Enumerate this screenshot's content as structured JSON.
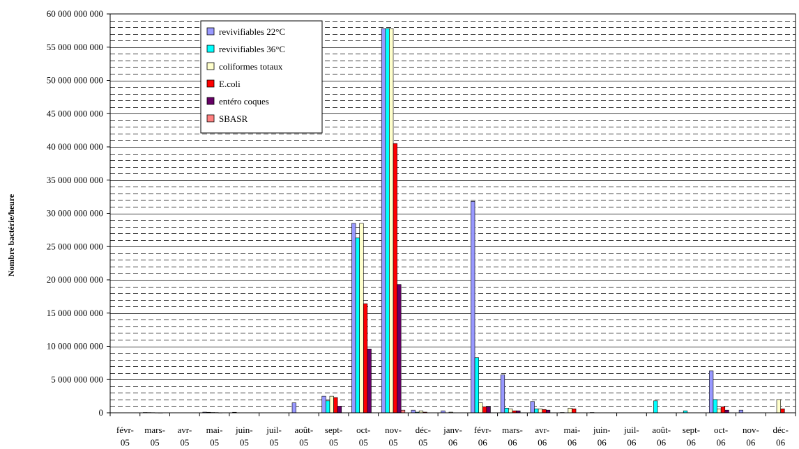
{
  "chart_data": {
    "type": "bar",
    "title": "",
    "xlabel": "",
    "ylabel": "Nombre bactérie/heure",
    "ylim": [
      0,
      60000000000
    ],
    "y_major_step": 5000000000,
    "y_minor_step": 1000000000,
    "y_tick_labels": [
      "0",
      "5 000 000 000",
      "10 000 000 000",
      "15 000 000 000",
      "20 000 000 000",
      "25 000 000 000",
      "30 000 000 000",
      "35 000 000 000",
      "40 000 000 000",
      "45 000 000 000",
      "50 000 000 000",
      "55 000 000 000",
      "60 000 000 000"
    ],
    "grid": true,
    "legend_position": "top-left",
    "categories": [
      [
        "févr-",
        "05"
      ],
      [
        "mars-",
        "05"
      ],
      [
        "avr-",
        "05"
      ],
      [
        "mai-",
        "05"
      ],
      [
        "juin-",
        "05"
      ],
      [
        "juil-",
        "05"
      ],
      [
        "août-",
        "05"
      ],
      [
        "sept-",
        "05"
      ],
      [
        "oct-",
        "05"
      ],
      [
        "nov-",
        "05"
      ],
      [
        "déc-",
        "05"
      ],
      [
        "janv-",
        "06"
      ],
      [
        "févr-",
        "06"
      ],
      [
        "mars-",
        "06"
      ],
      [
        "avr-",
        "06"
      ],
      [
        "mai-",
        "06"
      ],
      [
        "juin-",
        "06"
      ],
      [
        "juil-",
        "06"
      ],
      [
        "août-",
        "06"
      ],
      [
        "sept-",
        "06"
      ],
      [
        "oct-",
        "06"
      ],
      [
        "nov-",
        "06"
      ],
      [
        "déc-",
        "06"
      ]
    ],
    "series": [
      {
        "name": "revivifiables 22°C",
        "color": "#9999ff",
        "values": [
          0,
          50000000,
          0,
          100000000,
          80000000,
          0,
          1500000000,
          2500000000,
          28500000000,
          57800000000,
          400000000,
          300000000,
          31800000000,
          5700000000,
          1700000000,
          50000000,
          50000000,
          0,
          0,
          0,
          6300000000,
          400000000,
          0
        ]
      },
      {
        "name": "revivifiables 36°C",
        "color": "#00ffff",
        "values": [
          0,
          40000000,
          0,
          80000000,
          0,
          0,
          0,
          1800000000,
          26300000000,
          57800000000,
          100000000,
          0,
          8300000000,
          700000000,
          600000000,
          0,
          0,
          0,
          1800000000,
          300000000,
          2000000000,
          0,
          0
        ]
      },
      {
        "name": "coliformes totaux",
        "color": "#ffffcc",
        "values": [
          0,
          30000000,
          0,
          50000000,
          0,
          0,
          0,
          2500000000,
          28500000000,
          57800000000,
          300000000,
          100000000,
          1500000000,
          600000000,
          600000000,
          700000000,
          0,
          0,
          0,
          0,
          600000000,
          0,
          2000000000
        ]
      },
      {
        "name": "E.coli",
        "color": "#ff0000",
        "values": [
          0,
          20000000,
          0,
          40000000,
          0,
          0,
          0,
          2300000000,
          16400000000,
          40500000000,
          100000000,
          0,
          900000000,
          300000000,
          500000000,
          600000000,
          0,
          0,
          0,
          0,
          900000000,
          0,
          600000000
        ]
      },
      {
        "name": "entéro coques",
        "color": "#660066",
        "values": [
          0,
          10000000,
          0,
          20000000,
          0,
          0,
          0,
          1000000000,
          9600000000,
          19300000000,
          0,
          0,
          900000000,
          300000000,
          400000000,
          0,
          0,
          0,
          0,
          0,
          400000000,
          0,
          0
        ]
      },
      {
        "name": "SBASR",
        "color": "#ff8080",
        "values": [
          0,
          0,
          0,
          0,
          0,
          0,
          0,
          0,
          0,
          400000000,
          0,
          0,
          0,
          0,
          0,
          0,
          0,
          0,
          0,
          0,
          0,
          0,
          0
        ]
      }
    ]
  }
}
